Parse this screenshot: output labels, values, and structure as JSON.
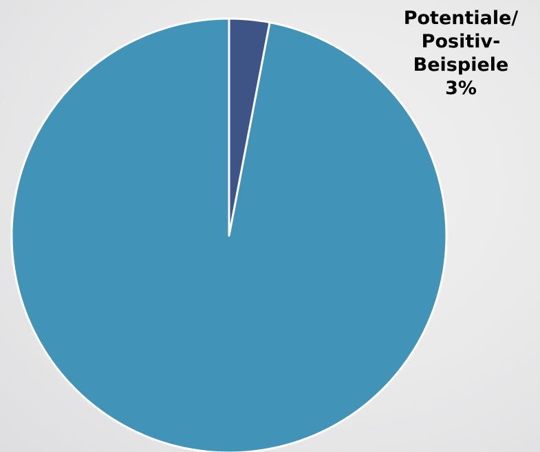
{
  "chart_data": {
    "type": "pie",
    "title": "",
    "slices": [
      {
        "label": "Potentiale/ Positiv-Beispiele",
        "label_lines": [
          "Potentiale/",
          "Positiv-",
          "Beispiele"
        ],
        "value": 3,
        "value_label": "3%",
        "color": "#3f5486"
      },
      {
        "label": "",
        "value": 97,
        "color": "#4194b7"
      }
    ],
    "start_angle_deg": 0,
    "direction": "clockwise",
    "legend": "none",
    "slice_border_color": "#ffffff"
  }
}
